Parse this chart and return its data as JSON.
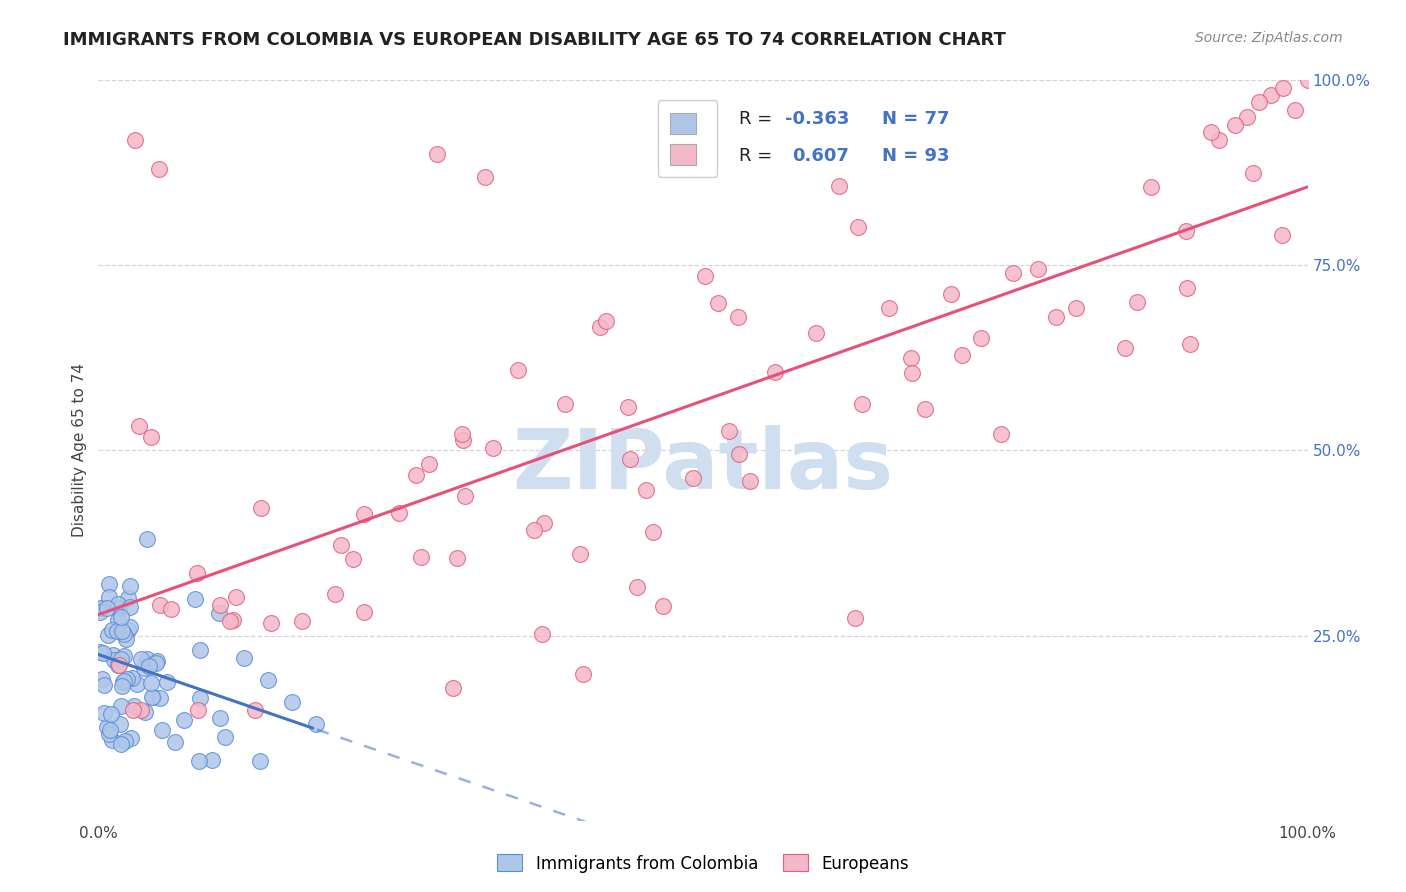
{
  "title": "IMMIGRANTS FROM COLOMBIA VS EUROPEAN DISABILITY AGE 65 TO 74 CORRELATION CHART",
  "source": "Source: ZipAtlas.com",
  "ylabel": "Disability Age 65 to 74",
  "xlim": [
    0,
    100
  ],
  "ylim": [
    0,
    100
  ],
  "colombia_R": -0.363,
  "colombia_N": 77,
  "european_R": 0.607,
  "european_N": 93,
  "colombia_color": "#aec6e8",
  "european_color": "#f5b8c8",
  "colombia_edge_color": "#5b8dd9",
  "european_edge_color": "#e06080",
  "colombia_line_color": "#4472c4",
  "european_line_color": "#e8507a",
  "watermark_color": "#d0dff0",
  "background_color": "#ffffff",
  "grid_color": "#e8e8e8",
  "title_fontsize": 13,
  "axis_label_fontsize": 11,
  "tick_fontsize": 11,
  "legend_fontsize": 13,
  "source_fontsize": 10
}
